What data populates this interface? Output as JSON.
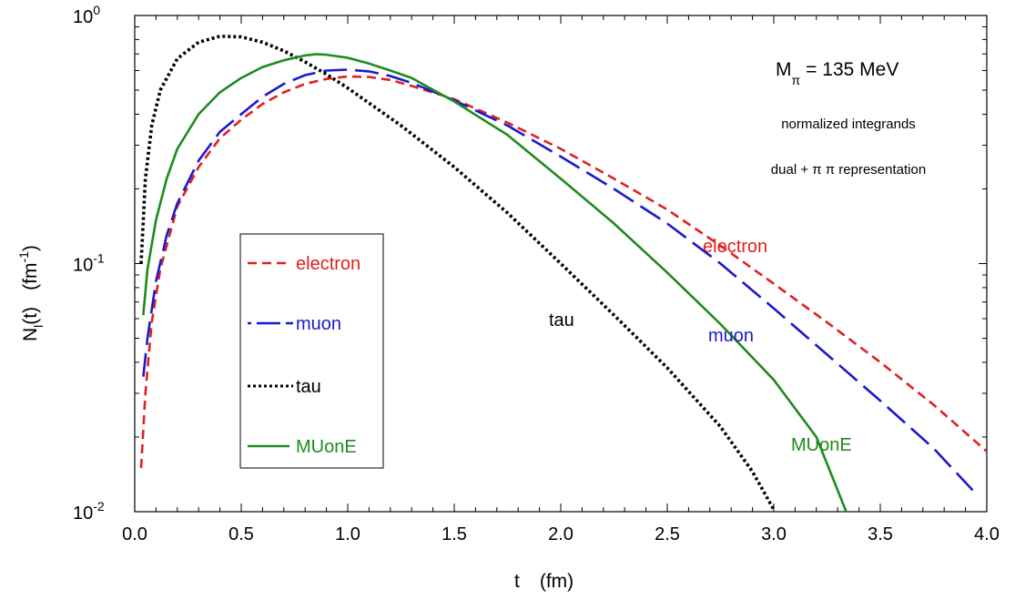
{
  "chart_data": {
    "type": "line",
    "xlabel": {
      "symbol": "t",
      "unit": "(fm)"
    },
    "ylabel": {
      "main": "N",
      "sub": "l",
      "paren": "(t)",
      "unit_open": "(fm",
      "unit_exp": "-1",
      "unit_close": ")"
    },
    "x_range": [
      0,
      4
    ],
    "y_range": [
      0.01,
      1
    ],
    "y_scale": "log",
    "x_ticks": [
      "0.0",
      "0.5",
      "1.0",
      "1.5",
      "2.0",
      "2.5",
      "3.0",
      "3.5",
      "4.0"
    ],
    "y_ticks": [
      {
        "value": 0.01,
        "base": "10",
        "exp": "-2"
      },
      {
        "value": 0.1,
        "base": "10",
        "exp": "-1"
      },
      {
        "value": 1,
        "base": "10",
        "exp": "0"
      }
    ],
    "annotations": {
      "mass_symbol": "M",
      "mass_sub": "π",
      "mass_value": "= 135 MeV",
      "line2": "normalized integrands",
      "line3": "dual + π π representation"
    },
    "legend": {
      "placement": "left-center",
      "entries": [
        "electron",
        "muon",
        "tau",
        "MUonE"
      ]
    },
    "series": [
      {
        "name": "electron",
        "color": "#e02020",
        "style": "dashed",
        "label": "electron",
        "points": [
          [
            0.03,
            0.015
          ],
          [
            0.05,
            0.03
          ],
          [
            0.08,
            0.058
          ],
          [
            0.12,
            0.095
          ],
          [
            0.2,
            0.17
          ],
          [
            0.3,
            0.245
          ],
          [
            0.4,
            0.32
          ],
          [
            0.5,
            0.38
          ],
          [
            0.6,
            0.44
          ],
          [
            0.7,
            0.49
          ],
          [
            0.8,
            0.53
          ],
          [
            0.9,
            0.555
          ],
          [
            1.0,
            0.568
          ],
          [
            1.1,
            0.565
          ],
          [
            1.2,
            0.55
          ],
          [
            1.3,
            0.52
          ],
          [
            1.5,
            0.46
          ],
          [
            1.75,
            0.37
          ],
          [
            2.0,
            0.29
          ],
          [
            2.25,
            0.22
          ],
          [
            2.5,
            0.165
          ],
          [
            2.75,
            0.118
          ],
          [
            3.0,
            0.083
          ],
          [
            3.25,
            0.058
          ],
          [
            3.5,
            0.04
          ],
          [
            3.75,
            0.027
          ],
          [
            4.0,
            0.0175
          ]
        ]
      },
      {
        "name": "muon",
        "color": "#1a1acc",
        "style": "long-dashed",
        "label": "muon",
        "points": [
          [
            0.04,
            0.035
          ],
          [
            0.06,
            0.05
          ],
          [
            0.1,
            0.085
          ],
          [
            0.15,
            0.13
          ],
          [
            0.2,
            0.175
          ],
          [
            0.3,
            0.26
          ],
          [
            0.4,
            0.34
          ],
          [
            0.5,
            0.4
          ],
          [
            0.6,
            0.47
          ],
          [
            0.7,
            0.53
          ],
          [
            0.8,
            0.575
          ],
          [
            0.9,
            0.6
          ],
          [
            1.0,
            0.605
          ],
          [
            1.1,
            0.595
          ],
          [
            1.2,
            0.57
          ],
          [
            1.3,
            0.535
          ],
          [
            1.5,
            0.455
          ],
          [
            1.75,
            0.36
          ],
          [
            2.0,
            0.27
          ],
          [
            2.25,
            0.2
          ],
          [
            2.5,
            0.145
          ],
          [
            2.75,
            0.1
          ],
          [
            3.0,
            0.066
          ],
          [
            3.25,
            0.043
          ],
          [
            3.5,
            0.028
          ],
          [
            3.75,
            0.018
          ],
          [
            3.95,
            0.0118
          ]
        ]
      },
      {
        "name": "tau",
        "color": "#000000",
        "style": "dotted",
        "label": "tau",
        "points": [
          [
            0.03,
            0.1
          ],
          [
            0.05,
            0.22
          ],
          [
            0.08,
            0.36
          ],
          [
            0.12,
            0.5
          ],
          [
            0.2,
            0.67
          ],
          [
            0.3,
            0.78
          ],
          [
            0.4,
            0.825
          ],
          [
            0.5,
            0.82
          ],
          [
            0.6,
            0.78
          ],
          [
            0.7,
            0.72
          ],
          [
            0.8,
            0.65
          ],
          [
            0.9,
            0.58
          ],
          [
            1.0,
            0.51
          ],
          [
            1.25,
            0.36
          ],
          [
            1.5,
            0.245
          ],
          [
            1.75,
            0.16
          ],
          [
            2.0,
            0.1
          ],
          [
            2.25,
            0.062
          ],
          [
            2.5,
            0.038
          ],
          [
            2.75,
            0.022
          ],
          [
            2.9,
            0.0145
          ],
          [
            3.0,
            0.0102
          ]
        ]
      },
      {
        "name": "MUonE",
        "color": "#1e8a1e",
        "style": "solid",
        "label": "MUonE",
        "points": [
          [
            0.04,
            0.062
          ],
          [
            0.06,
            0.095
          ],
          [
            0.1,
            0.15
          ],
          [
            0.15,
            0.22
          ],
          [
            0.2,
            0.29
          ],
          [
            0.3,
            0.4
          ],
          [
            0.4,
            0.49
          ],
          [
            0.5,
            0.56
          ],
          [
            0.6,
            0.62
          ],
          [
            0.7,
            0.66
          ],
          [
            0.8,
            0.69
          ],
          [
            0.85,
            0.698
          ],
          [
            0.9,
            0.695
          ],
          [
            1.0,
            0.675
          ],
          [
            1.1,
            0.64
          ],
          [
            1.2,
            0.6
          ],
          [
            1.3,
            0.56
          ],
          [
            1.5,
            0.45
          ],
          [
            1.75,
            0.33
          ],
          [
            2.0,
            0.22
          ],
          [
            2.25,
            0.145
          ],
          [
            2.5,
            0.092
          ],
          [
            2.75,
            0.057
          ],
          [
            3.0,
            0.034
          ],
          [
            3.2,
            0.02
          ],
          [
            3.34,
            0.01
          ]
        ]
      }
    ]
  }
}
